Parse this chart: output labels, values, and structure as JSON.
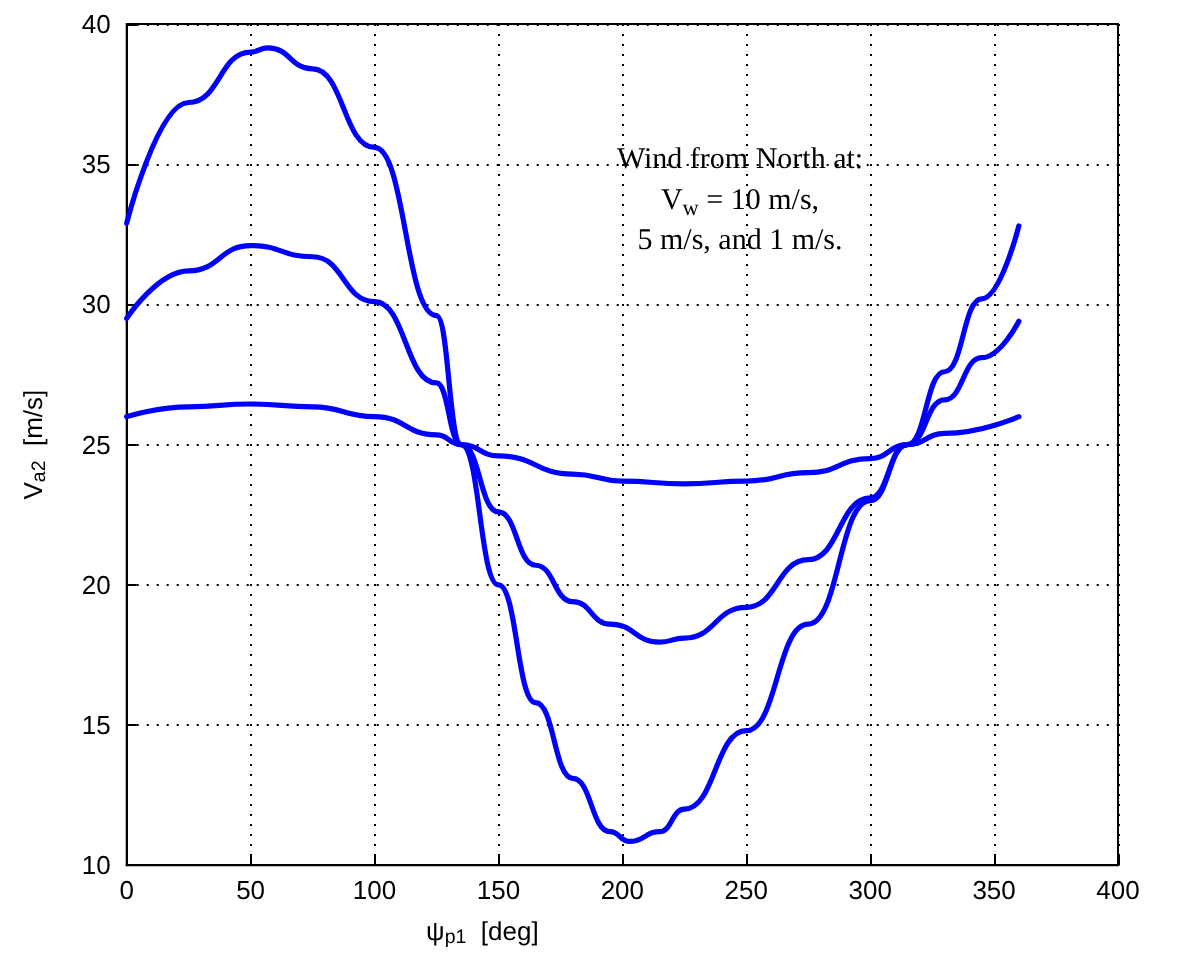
{
  "chart_data": {
    "type": "line",
    "xlabel": "ψ$_{p1}$  [deg]",
    "ylabel": "V$_{a2}$  [m/s]",
    "annotations": [
      "Wind from North at:\nV$_{w}$ = 10 m/s,\n5 m/s, and 1 m/s."
    ],
    "xlim": [
      0,
      400
    ],
    "xticks": [
      0,
      50,
      100,
      150,
      200,
      250,
      300,
      350,
      400
    ],
    "ylim": [
      10,
      40
    ],
    "yticks": [
      10,
      15,
      20,
      25,
      30,
      35,
      40
    ],
    "grid": true,
    "marker": "none",
    "line_style": "solid",
    "series": [
      {
        "color": "#0000ff",
        "x": [
          0,
          25,
          50,
          57,
          75,
          100,
          125,
          135,
          150,
          165,
          180,
          195,
          203,
          215,
          225,
          250,
          275,
          300,
          315,
          330,
          345,
          360
        ],
        "values": [
          32.9,
          37.2,
          39.0,
          39.15,
          38.4,
          35.6,
          29.6,
          25.0,
          20.0,
          15.8,
          13.1,
          11.2,
          10.85,
          11.2,
          12.0,
          14.8,
          18.6,
          23.0,
          25.0,
          27.6,
          30.2,
          32.8
        ]
      },
      {
        "color": "#0000ff",
        "x": [
          0,
          25,
          50,
          75,
          100,
          125,
          135,
          150,
          165,
          180,
          195,
          215,
          225,
          250,
          275,
          300,
          315,
          330,
          345,
          360
        ],
        "values": [
          29.5,
          31.2,
          32.1,
          31.7,
          30.1,
          27.2,
          25.0,
          22.6,
          20.7,
          19.4,
          18.6,
          17.96,
          18.1,
          19.2,
          20.9,
          23.1,
          25.0,
          26.6,
          28.1,
          29.4
        ]
      },
      {
        "color": "#0000ff",
        "x": [
          0,
          25,
          50,
          75,
          100,
          125,
          135,
          150,
          180,
          200,
          225,
          250,
          275,
          300,
          315,
          330,
          360
        ],
        "values": [
          26.0,
          26.35,
          26.45,
          26.35,
          26.0,
          25.35,
          25.0,
          24.6,
          23.95,
          23.7,
          23.6,
          23.7,
          24.0,
          24.5,
          25.0,
          25.4,
          26.0
        ]
      }
    ]
  }
}
